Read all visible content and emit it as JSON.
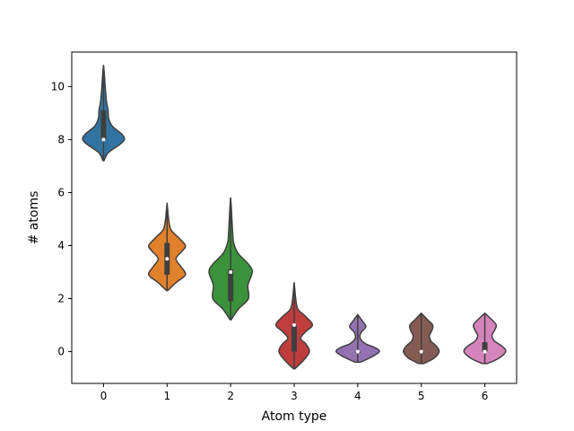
{
  "chart_data": {
    "type": "violin",
    "title": "",
    "xlabel": "Atom type",
    "ylabel": "# atoms",
    "ylim": [
      -1.2,
      11.3
    ],
    "yticks": [
      0,
      2,
      4,
      6,
      8,
      10
    ],
    "grid": false,
    "legend": "none",
    "categories": [
      "0",
      "1",
      "2",
      "3",
      "4",
      "5",
      "6"
    ],
    "colors": [
      "#3274a1",
      "#e1812c",
      "#3a923a",
      "#c03d3e",
      "#9372b2",
      "#845b53",
      "#d684bd"
    ],
    "violins": [
      {
        "category": "0",
        "min": 7.2,
        "max": 10.8,
        "q1": 8.0,
        "median": 8.0,
        "q3": 9.1,
        "density": [
          [
            7.2,
            0.02
          ],
          [
            7.5,
            0.18
          ],
          [
            7.8,
            0.62
          ],
          [
            8.0,
            0.82
          ],
          [
            8.2,
            0.72
          ],
          [
            8.5,
            0.35
          ],
          [
            8.8,
            0.2
          ],
          [
            9.1,
            0.18
          ],
          [
            9.4,
            0.12
          ],
          [
            9.8,
            0.08
          ],
          [
            10.2,
            0.05
          ],
          [
            10.5,
            0.03
          ],
          [
            10.8,
            0.0
          ]
        ]
      },
      {
        "category": "1",
        "min": 2.3,
        "max": 5.6,
        "q1": 2.9,
        "median": 3.5,
        "q3": 4.1,
        "density": [
          [
            2.3,
            0.02
          ],
          [
            2.6,
            0.35
          ],
          [
            2.9,
            0.72
          ],
          [
            3.2,
            0.55
          ],
          [
            3.5,
            0.35
          ],
          [
            3.8,
            0.6
          ],
          [
            4.0,
            0.72
          ],
          [
            4.3,
            0.45
          ],
          [
            4.6,
            0.15
          ],
          [
            5.0,
            0.06
          ],
          [
            5.3,
            0.03
          ],
          [
            5.6,
            0.0
          ]
        ]
      },
      {
        "category": "2",
        "min": 1.2,
        "max": 5.8,
        "q1": 1.9,
        "median": 3.0,
        "q3": 3.1,
        "density": [
          [
            1.2,
            0.02
          ],
          [
            1.6,
            0.3
          ],
          [
            2.0,
            0.7
          ],
          [
            2.5,
            0.68
          ],
          [
            3.0,
            0.85
          ],
          [
            3.3,
            0.7
          ],
          [
            3.7,
            0.3
          ],
          [
            4.1,
            0.12
          ],
          [
            4.5,
            0.08
          ],
          [
            5.0,
            0.05
          ],
          [
            5.4,
            0.03
          ],
          [
            5.8,
            0.0
          ]
        ]
      },
      {
        "category": "3",
        "min": -0.65,
        "max": 2.6,
        "q1": 0.0,
        "median": 1.0,
        "q3": 1.0,
        "density": [
          [
            -0.65,
            0.02
          ],
          [
            -0.35,
            0.35
          ],
          [
            0.0,
            0.6
          ],
          [
            0.3,
            0.45
          ],
          [
            0.5,
            0.25
          ],
          [
            0.75,
            0.45
          ],
          [
            1.0,
            0.72
          ],
          [
            1.3,
            0.48
          ],
          [
            1.6,
            0.15
          ],
          [
            2.0,
            0.06
          ],
          [
            2.3,
            0.03
          ],
          [
            2.6,
            0.0
          ]
        ]
      },
      {
        "category": "4",
        "min": -0.4,
        "max": 1.4,
        "q1": 0.0,
        "median": 0.0,
        "q3": 0.0,
        "density": [
          [
            -0.4,
            0.1
          ],
          [
            -0.2,
            0.55
          ],
          [
            0.0,
            0.85
          ],
          [
            0.15,
            0.68
          ],
          [
            0.3,
            0.3
          ],
          [
            0.5,
            0.1
          ],
          [
            0.7,
            0.12
          ],
          [
            0.9,
            0.3
          ],
          [
            1.0,
            0.3
          ],
          [
            1.2,
            0.15
          ],
          [
            1.4,
            0.0
          ]
        ]
      },
      {
        "category": "5",
        "min": -0.45,
        "max": 1.45,
        "q1": 0.0,
        "median": 0.0,
        "q3": 0.0,
        "density": [
          [
            -0.45,
            0.1
          ],
          [
            -0.25,
            0.5
          ],
          [
            0.0,
            0.7
          ],
          [
            0.2,
            0.6
          ],
          [
            0.4,
            0.38
          ],
          [
            0.6,
            0.32
          ],
          [
            0.8,
            0.42
          ],
          [
            1.0,
            0.45
          ],
          [
            1.2,
            0.25
          ],
          [
            1.45,
            0.0
          ]
        ]
      },
      {
        "category": "6",
        "min": -0.45,
        "max": 1.45,
        "q1": 0.0,
        "median": 0.0,
        "q3": 0.35,
        "density": [
          [
            -0.45,
            0.1
          ],
          [
            -0.25,
            0.55
          ],
          [
            0.0,
            0.82
          ],
          [
            0.2,
            0.68
          ],
          [
            0.4,
            0.38
          ],
          [
            0.6,
            0.28
          ],
          [
            0.8,
            0.38
          ],
          [
            1.0,
            0.45
          ],
          [
            1.2,
            0.28
          ],
          [
            1.45,
            0.0
          ]
        ]
      }
    ]
  }
}
